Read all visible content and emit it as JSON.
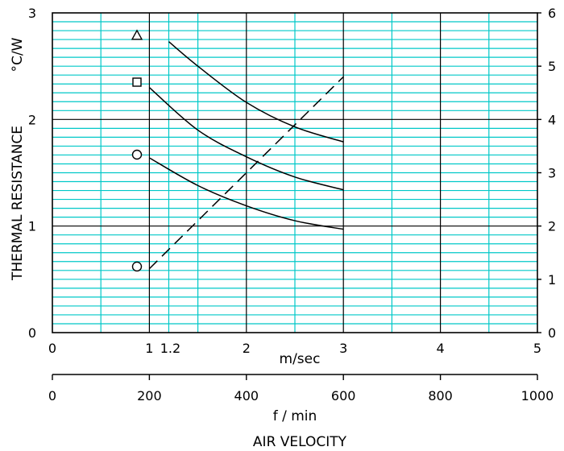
{
  "chart_data": {
    "type": "line",
    "colors": {
      "grid_minor": "#00c8c8",
      "grid_major": "#000000",
      "line": "#000000"
    },
    "y_left": {
      "label": "THERMAL RESISTANCE",
      "unit": "°C/W",
      "range": [
        0,
        3
      ],
      "ticks": [
        "0",
        "1",
        "2",
        "3"
      ]
    },
    "y_right": {
      "range": [
        0,
        6
      ],
      "ticks": [
        "0",
        "1",
        "2",
        "3",
        "4",
        "5",
        "6"
      ]
    },
    "x_top": {
      "unit": "m/sec",
      "range": [
        0,
        5
      ],
      "ticks": [
        "0",
        "1",
        "1.2",
        "2",
        "3",
        "4",
        "5"
      ]
    },
    "x_bottom": {
      "unit": "f / min",
      "range": [
        0,
        1000
      ],
      "ticks": [
        "0",
        "200",
        "400",
        "600",
        "800",
        "1000"
      ]
    },
    "title_bottom": "AIR VELOCITY",
    "series": [
      {
        "marker": "triangle",
        "style": "solid",
        "x": [
          1.2,
          1.5,
          2.0,
          2.5,
          3.0
        ],
        "y": [
          2.73,
          2.5,
          2.16,
          1.93,
          1.79
        ]
      },
      {
        "marker": "square",
        "style": "solid",
        "x": [
          1.0,
          1.5,
          2.0,
          2.5,
          3.0
        ],
        "y": [
          2.3,
          1.9,
          1.65,
          1.46,
          1.34
        ]
      },
      {
        "marker": "circle",
        "style": "solid",
        "x": [
          1.0,
          1.5,
          2.0,
          2.5,
          3.0
        ],
        "y": [
          1.64,
          1.38,
          1.19,
          1.05,
          0.97
        ]
      },
      {
        "marker": "circle",
        "style": "dashed",
        "axis": "right",
        "x": [
          1.0,
          3.0
        ],
        "y": [
          1.2,
          4.8
        ]
      }
    ]
  }
}
